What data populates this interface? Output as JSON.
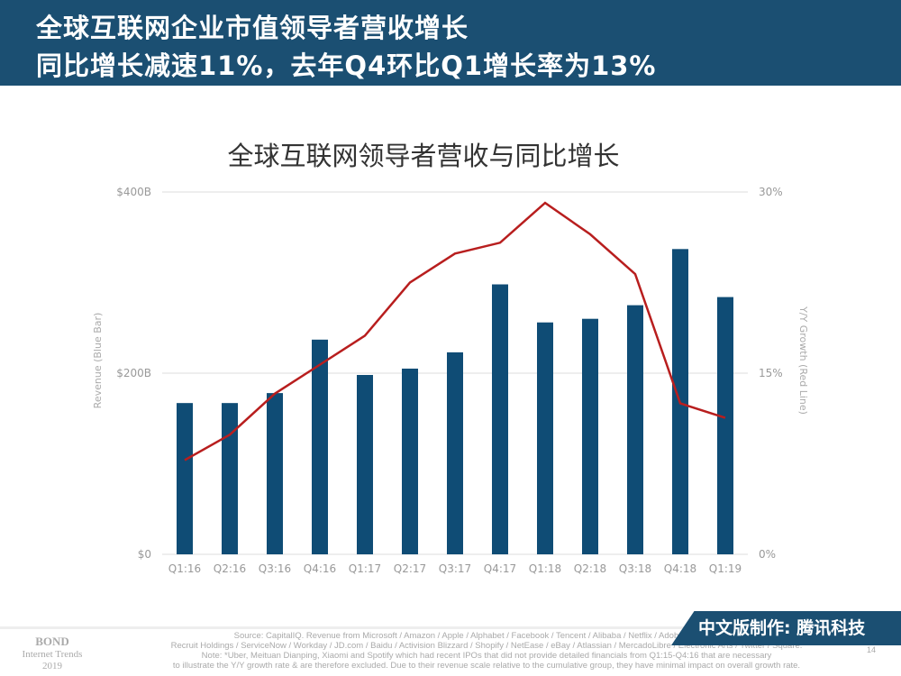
{
  "header": {
    "line1": "全球互联网企业市值领导者营收增长",
    "line2": "同比增长减速11%，去年Q4环比Q1增长率为13%"
  },
  "chart_data": {
    "type": "bar+line",
    "title": "全球互联网领导者营收与同比增长",
    "ylabel": "Revenue (Blue Bar)",
    "y2label": "Y/Y Growth (Red Line)",
    "ylim": [
      0,
      400
    ],
    "y2lim": [
      0,
      30
    ],
    "yticks": [
      "$0",
      "$200B",
      "$400B"
    ],
    "y2ticks": [
      "0%",
      "15%",
      "30%"
    ],
    "categories": [
      "Q1:16",
      "Q2:16",
      "Q3:16",
      "Q4:16",
      "Q1:17",
      "Q2:17",
      "Q3:17",
      "Q4:17",
      "Q1:18",
      "Q2:18",
      "Q3:18",
      "Q4:18",
      "Q1:19"
    ],
    "bars": {
      "values": [
        167,
        167,
        178,
        237,
        198,
        205,
        223,
        298,
        256,
        260,
        275,
        337,
        284
      ],
      "color": "#0f4c75"
    },
    "line": {
      "values": [
        7.8,
        9.9,
        13.3,
        15.7,
        18.1,
        22.5,
        24.9,
        25.8,
        29.1,
        26.5,
        23.2,
        12.5,
        11.3
      ],
      "color": "#b81e1e"
    },
    "grid": true
  },
  "footer": {
    "bond": "BOND",
    "trends": "Internet Trends",
    "year": "2019",
    "source1": "Source: CapitalIQ. Revenue from Microsoft / Amazon / Apple / Alphabet / Facebook / Tencent / Alibaba / Netflix / Adobe / PayPal / S…",
    "source2": "Recruit Holdings / ServiceNow / Workday / JD.com / Baidu / Activision Blizzard / Shopify / NetEase / eBay / Atlassian / MercadoLibre / Electronic Arts / Twitter / Square.",
    "note1": "Note: *Uber, Meituan Dianping, Xiaomi and Spotify which had recent IPOs that did not provide detailed financials from Q1:15-Q4:16 that are necessary",
    "note2": "to illustrate the Y/Y growth rate & are therefore excluded. Due to their revenue scale relative to the cumulative group, they have minimal impact on overall growth rate.",
    "badge": "中文版制作: 腾讯科技",
    "page": "14"
  }
}
